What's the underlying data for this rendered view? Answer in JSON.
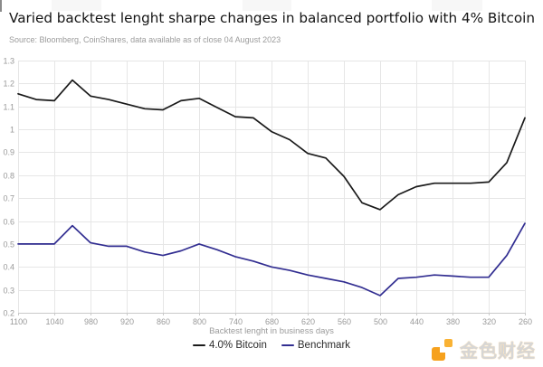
{
  "page": {
    "title": "Varied backtest lenght sharpe changes in balanced portfolio with 4% Bitcoin",
    "source": "Source: Bloomberg, CoinShares, data available as of close 04 August 2023"
  },
  "chart_data": {
    "type": "line",
    "title": "Varied backtest lenght sharpe changes in balanced portfolio with 4% Bitcoin",
    "xlabel": "Backtest lenght in business days",
    "ylabel": "",
    "x_axis_reversed": true,
    "x": [
      1100,
      1070,
      1040,
      1010,
      980,
      950,
      920,
      890,
      860,
      830,
      800,
      770,
      740,
      710,
      680,
      650,
      620,
      590,
      560,
      530,
      500,
      470,
      440,
      410,
      380,
      350,
      320,
      290,
      260
    ],
    "xticks": [
      1100,
      1040,
      980,
      920,
      860,
      800,
      740,
      680,
      620,
      560,
      500,
      440,
      380,
      320,
      260
    ],
    "yticks": [
      1.3,
      1.2,
      1.1,
      1,
      0.9,
      0.8,
      0.7,
      0.6,
      0.5,
      0.4,
      0.3,
      0.2
    ],
    "ylim": [
      0.2,
      1.3
    ],
    "grid": true,
    "legend_position": "bottom",
    "series": [
      {
        "name": "4.0% Bitcoin",
        "color": "#1a1a1a",
        "values": [
          1.155,
          1.13,
          1.125,
          1.215,
          1.145,
          1.13,
          1.11,
          1.09,
          1.085,
          1.125,
          1.135,
          1.095,
          1.055,
          1.05,
          0.99,
          0.955,
          0.895,
          0.875,
          0.795,
          0.68,
          0.65,
          0.715,
          0.75,
          0.765,
          0.765,
          0.765,
          0.77,
          0.855,
          1.05
        ]
      },
      {
        "name": "Benchmark",
        "color": "#322e91",
        "values": [
          0.5,
          0.5,
          0.5,
          0.58,
          0.505,
          0.49,
          0.49,
          0.465,
          0.45,
          0.47,
          0.5,
          0.475,
          0.445,
          0.425,
          0.4,
          0.385,
          0.365,
          0.35,
          0.335,
          0.31,
          0.275,
          0.35,
          0.355,
          0.365,
          0.36,
          0.355,
          0.355,
          0.45,
          0.59
        ]
      }
    ]
  },
  "watermark": {
    "text": "金色财经",
    "icon": "jinse-logo-icon",
    "icon_color": "#f6a11d",
    "icon_color_light": "#f9b234",
    "text_color": "#d6d6d6"
  },
  "colors": {
    "background": "#ffffff",
    "grid": "#e6e6e6",
    "axis_line": "#c9c9c9",
    "tick_label": "#999999",
    "title": "#141414",
    "source": "#9b9b9b"
  }
}
